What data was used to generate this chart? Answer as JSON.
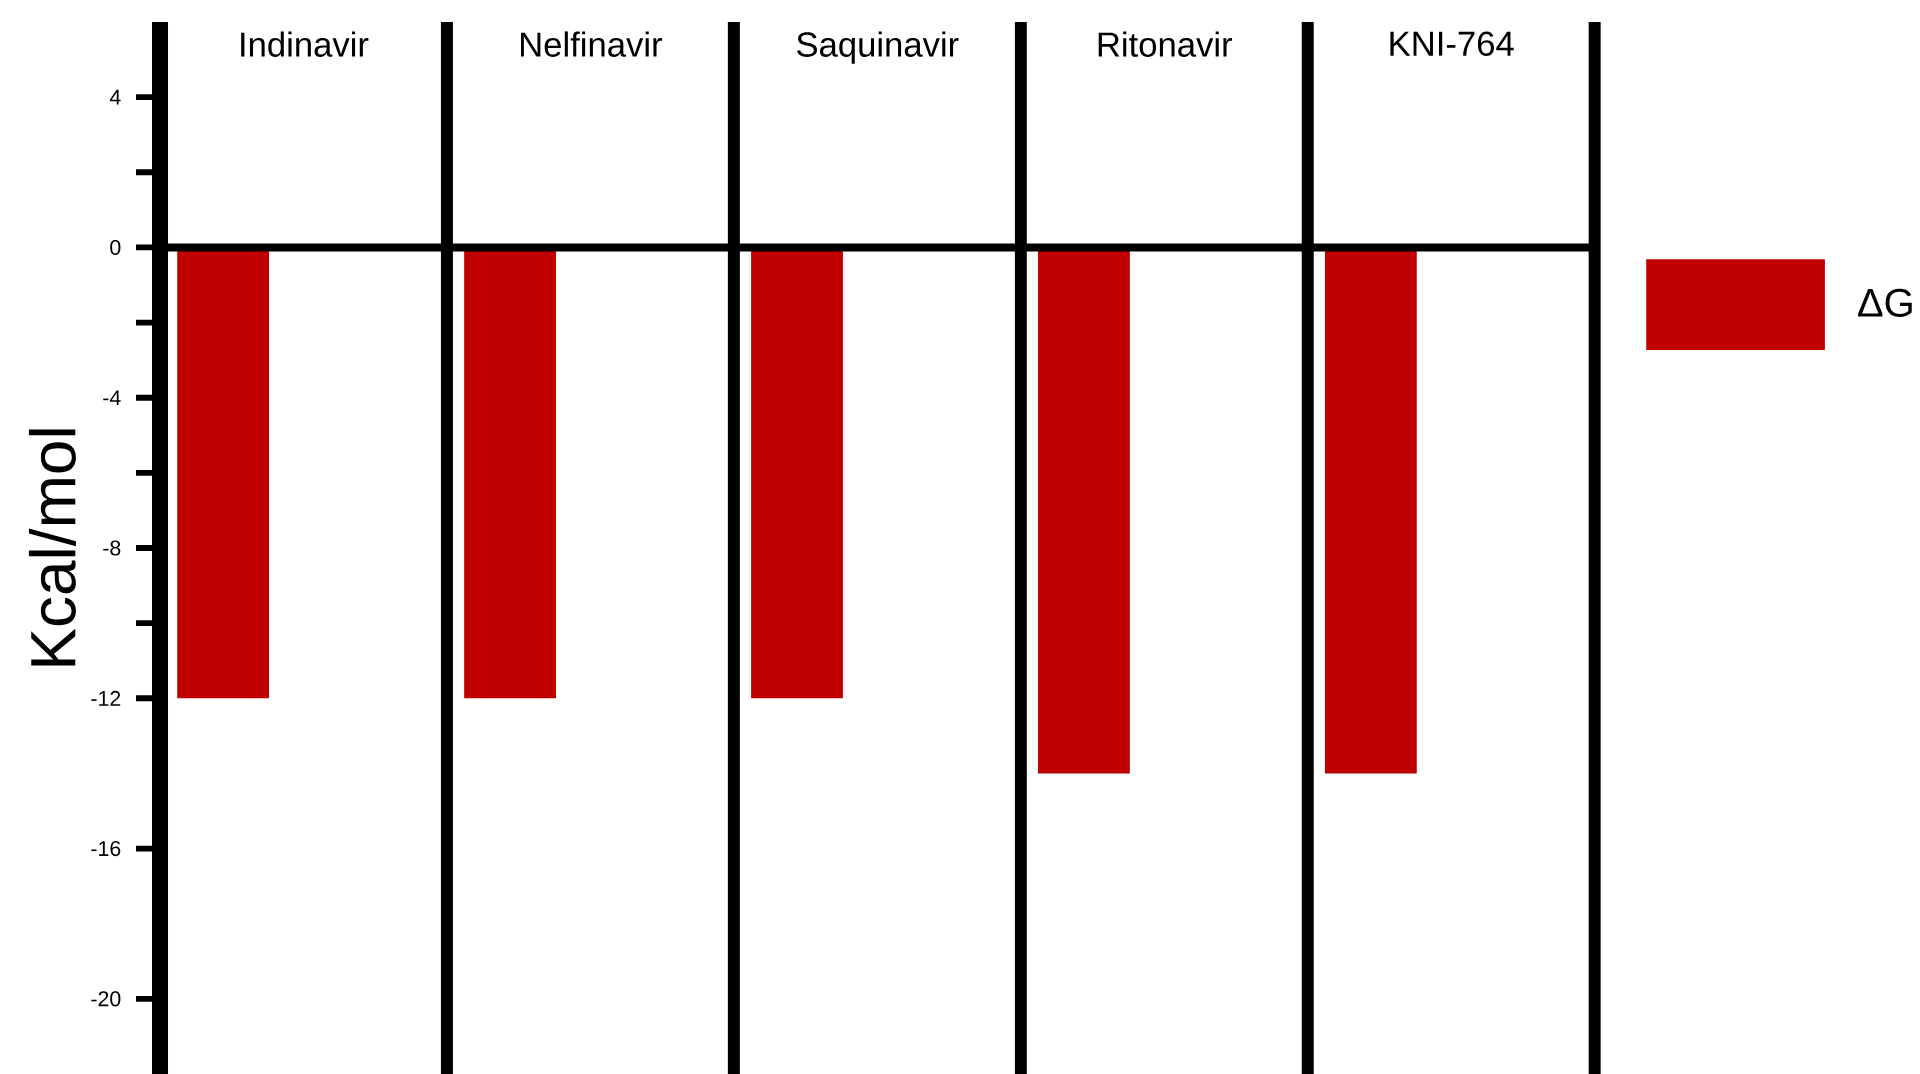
{
  "chart_data": {
    "type": "bar",
    "ylabel": "Kcal/mol",
    "categories": [
      "Indinavir",
      "Nelfinavir",
      "Saquinavir",
      "Ritonavir",
      "KNI-764"
    ],
    "series": [
      {
        "name": "ΔG",
        "color": "#c00000",
        "values": [
          -12,
          -12,
          -12,
          -14,
          -14
        ]
      }
    ],
    "ylim": [
      -22,
      6
    ],
    "yticks": [
      4,
      {
        "value": 2,
        "label": null
      },
      0,
      {
        "value": -2,
        "label": null
      },
      -4,
      {
        "value": -6,
        "label": null
      },
      -8,
      {
        "value": -10,
        "label": null
      },
      -12,
      -16,
      -20
    ],
    "ref_lines": [
      {
        "axis": "y",
        "value": 0
      }
    ],
    "grid": "x",
    "legend": "right"
  }
}
